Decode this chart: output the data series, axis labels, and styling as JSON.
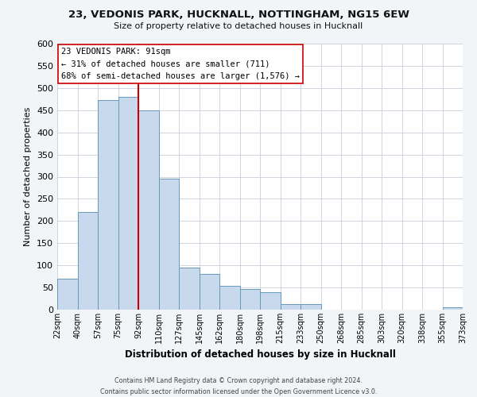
{
  "title1": "23, VEDONIS PARK, HUCKNALL, NOTTINGHAM, NG15 6EW",
  "title2": "Size of property relative to detached houses in Hucknall",
  "xlabel": "Distribution of detached houses by size in Hucknall",
  "ylabel": "Number of detached properties",
  "bin_labels": [
    "22sqm",
    "40sqm",
    "57sqm",
    "75sqm",
    "92sqm",
    "110sqm",
    "127sqm",
    "145sqm",
    "162sqm",
    "180sqm",
    "198sqm",
    "215sqm",
    "233sqm",
    "250sqm",
    "268sqm",
    "285sqm",
    "303sqm",
    "320sqm",
    "338sqm",
    "355sqm",
    "373sqm"
  ],
  "bar_values": [
    70,
    220,
    473,
    480,
    450,
    295,
    95,
    80,
    53,
    46,
    40,
    12,
    12,
    0,
    0,
    0,
    0,
    0,
    0,
    5
  ],
  "bar_color": "#c8d9ed",
  "bar_edge_color": "#6699bb",
  "vline_position": 4,
  "vline_color": "#cc0000",
  "ylim": [
    0,
    600
  ],
  "yticks": [
    0,
    50,
    100,
    150,
    200,
    250,
    300,
    350,
    400,
    450,
    500,
    550,
    600
  ],
  "annotation_title": "23 VEDONIS PARK: 91sqm",
  "annotation_line1": "← 31% of detached houses are smaller (711)",
  "annotation_line2": "68% of semi-detached houses are larger (1,576) →",
  "footer1": "Contains HM Land Registry data © Crown copyright and database right 2024.",
  "footer2": "Contains public sector information licensed under the Open Government Licence v3.0.",
  "bg_color": "#f2f5f8",
  "plot_bg_color": "#ffffff",
  "grid_color": "#c8d0da"
}
